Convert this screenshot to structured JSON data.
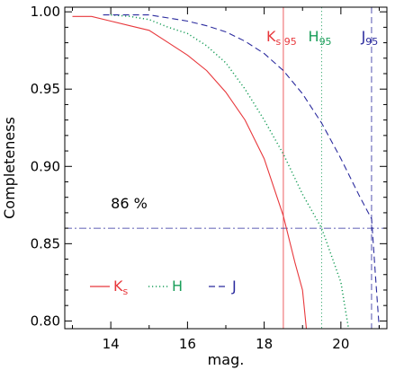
{
  "chart_data": {
    "type": "line",
    "title": "",
    "xlabel": "mag.",
    "ylabel": "Completeness",
    "xlim": [
      12.8,
      21.2
    ],
    "ylim": [
      0.795,
      1.003
    ],
    "x_ticks": [
      14,
      16,
      18,
      20
    ],
    "y_ticks": [
      0.8,
      0.85,
      0.9,
      0.95,
      1.0
    ],
    "x_tick_labels": [
      "14",
      "16",
      "18",
      "20"
    ],
    "y_tick_labels": [
      "0.80",
      "0.85",
      "0.90",
      "0.95",
      "1.00"
    ],
    "grid": false,
    "legend_placement": "bottom-left",
    "series": [
      {
        "name": "Ks",
        "label_main": "K",
        "label_sub": "s",
        "color": "#e8383c",
        "dash": "solid",
        "x": [
          13.0,
          13.5,
          14.0,
          14.5,
          15.0,
          15.5,
          16.0,
          16.5,
          17.0,
          17.5,
          18.0,
          18.5,
          18.8,
          19.0,
          19.1
        ],
        "y": [
          0.997,
          0.997,
          0.994,
          0.991,
          0.988,
          0.98,
          0.972,
          0.962,
          0.948,
          0.93,
          0.905,
          0.868,
          0.838,
          0.82,
          0.795
        ]
      },
      {
        "name": "H",
        "label_main": "H",
        "label_sub": "",
        "color": "#1a9e5a",
        "dash": "dotted",
        "x": [
          14.0,
          14.5,
          15.0,
          15.5,
          16.0,
          16.5,
          17.0,
          17.5,
          18.0,
          18.5,
          19.0,
          19.5,
          20.0,
          20.1,
          20.2
        ],
        "y": [
          0.998,
          0.997,
          0.995,
          0.99,
          0.986,
          0.978,
          0.967,
          0.95,
          0.93,
          0.908,
          0.882,
          0.86,
          0.825,
          0.81,
          0.795
        ]
      },
      {
        "name": "J",
        "label_main": "J",
        "label_sub": "",
        "color": "#2b2b9e",
        "dash": "dashed",
        "x": [
          13.8,
          14.5,
          15.0,
          15.5,
          16.0,
          16.5,
          17.0,
          17.5,
          18.0,
          18.5,
          19.0,
          19.5,
          20.0,
          20.5,
          20.8,
          20.9,
          21.0
        ],
        "y": [
          0.998,
          0.998,
          0.998,
          0.996,
          0.994,
          0.991,
          0.987,
          0.981,
          0.973,
          0.962,
          0.947,
          0.928,
          0.905,
          0.88,
          0.866,
          0.83,
          0.795
        ]
      }
    ],
    "reference_lines": [
      {
        "name": "Ks95",
        "orientation": "vertical",
        "x": 18.5,
        "color": "#e8383c",
        "dash": "solid",
        "label_main": "K",
        "label_sub": "s 95"
      },
      {
        "name": "H95",
        "orientation": "vertical",
        "x": 19.5,
        "color": "#1a9e5a",
        "dash": "dotted",
        "label_main": "H",
        "label_sub": "95"
      },
      {
        "name": "J95",
        "orientation": "vertical",
        "x": 20.8,
        "color": "#2b2b9e",
        "dash": "dashed",
        "label_main": "J",
        "label_sub": "95"
      },
      {
        "name": "86%",
        "orientation": "horizontal",
        "y": 0.86,
        "color": "#2b2b9e",
        "dash": "dashdot"
      }
    ],
    "annotations": [
      {
        "text": "86 %",
        "x": 14.0,
        "y": 0.873
      }
    ]
  }
}
